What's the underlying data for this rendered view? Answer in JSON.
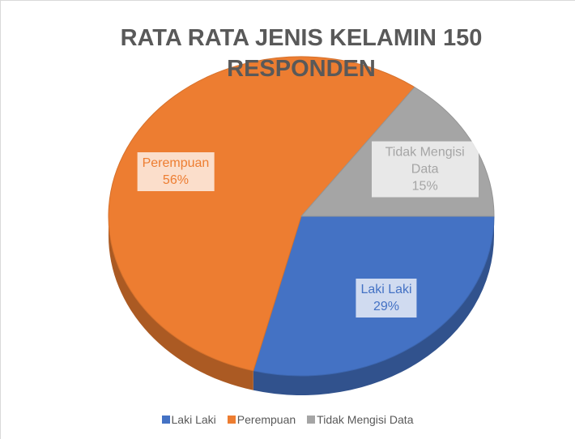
{
  "chart_data": {
    "type": "pie",
    "title": "RATA RATA JENIS KELAMIN 150 RESPONDEN",
    "categories": [
      "Laki Laki",
      "Perempuan",
      "Tidak Mengisi Data"
    ],
    "values": [
      29,
      56,
      15
    ],
    "value_labels": [
      "29%",
      "56%",
      "15%"
    ],
    "colors": [
      "#4472c4",
      "#ed7d31",
      "#a5a5a5"
    ],
    "legend": "bottom"
  }
}
